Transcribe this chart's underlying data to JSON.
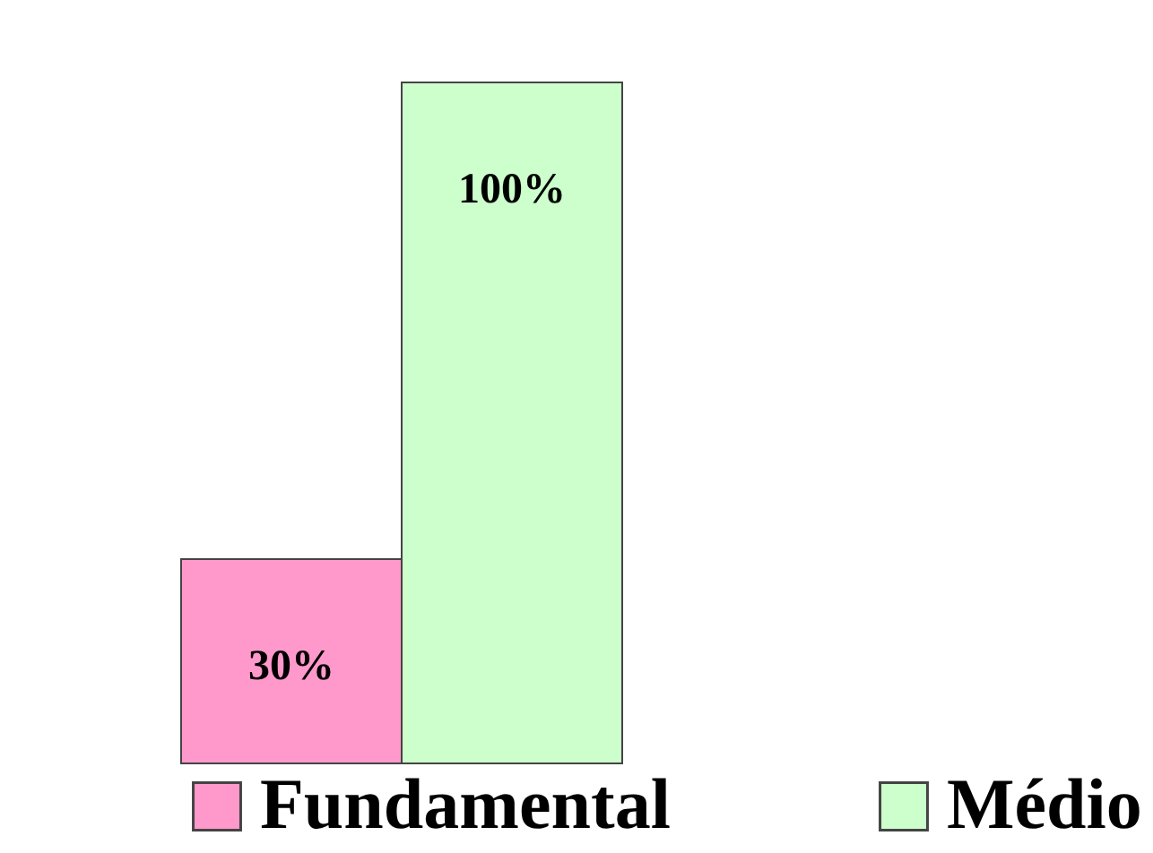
{
  "chart_data": {
    "type": "bar",
    "categories": [
      null
    ],
    "legend": "bottom",
    "data_labels": true,
    "series": [
      {
        "name": "Fundamental",
        "color": "#ff99cc",
        "values": [
          30
        ],
        "value_labels": [
          "30%"
        ]
      },
      {
        "name": "Médio",
        "color": "#ccffcc",
        "values": [
          100
        ],
        "value_labels": [
          "100%"
        ]
      }
    ]
  }
}
